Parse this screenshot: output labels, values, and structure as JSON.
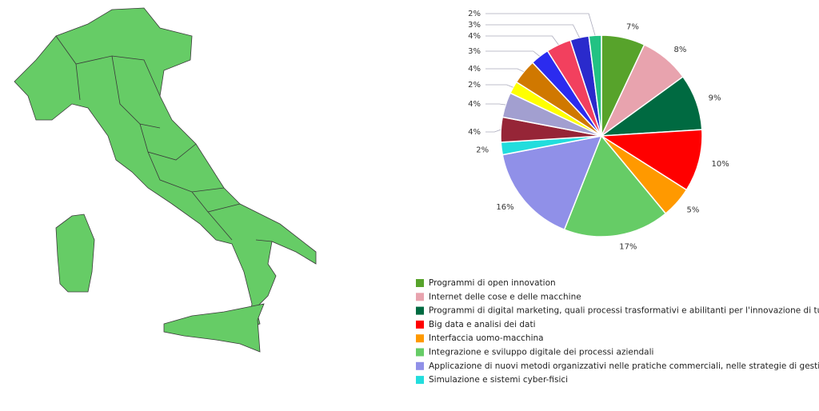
{
  "chart_data": {
    "type": "pie",
    "categories": [
      "Programmi di open innovation",
      "Internet delle cose e delle macchine",
      "Programmi di digital marketing, quali processi trasformativi e abilitanti per l'innovazione di tutti i…",
      "Big data e analisi dei dati",
      "Interfaccia uomo-macchina",
      "Integrazione e sviluppo digitale dei processi aziendali",
      "Applicazione di nuovi metodi organizzativi nelle pratiche commerciali, nelle strategie di gestione…",
      "Simulazione e sistemi cyber-fisici",
      null,
      null,
      null,
      null,
      null,
      null,
      null,
      null
    ],
    "values": [
      7,
      8,
      9,
      10,
      5,
      17,
      16,
      2,
      4,
      4,
      2,
      4,
      3,
      4,
      3,
      2
    ],
    "value_labels": [
      "7%",
      "8%",
      "9%",
      "10%",
      "5%",
      "17%",
      "16%",
      "2%",
      "4%",
      "4%",
      "2%",
      "4%",
      "3%",
      "4%",
      "3%",
      "2%"
    ],
    "colors": [
      "#57a32b",
      "#e8a3ae",
      "#006a41",
      "#ff0000",
      "#ff9900",
      "#66cc66",
      "#9090e8",
      "#22dddd",
      "#962537",
      "#a29fd0",
      "#ffff00",
      "#d07800",
      "#2b2bef",
      "#f2405e",
      "#2a2acc",
      "#22c283"
    ]
  }
}
